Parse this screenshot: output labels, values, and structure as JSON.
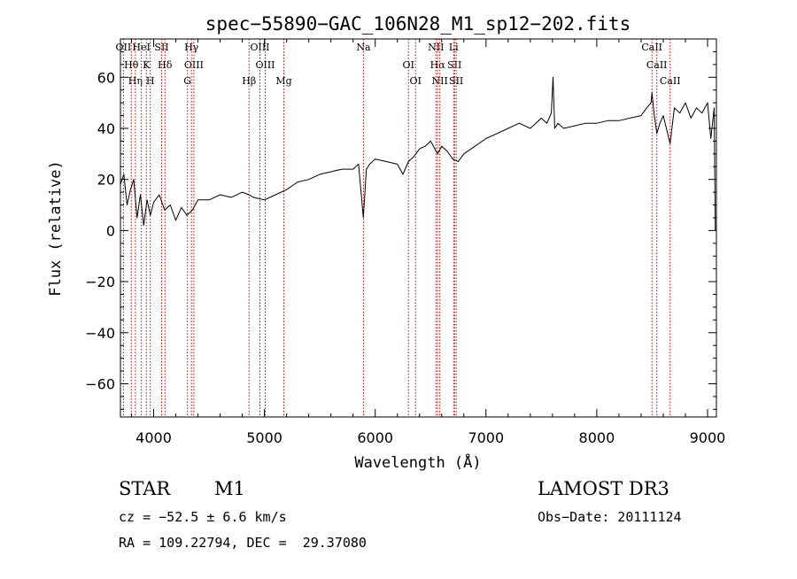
{
  "chart_data": {
    "type": "line",
    "title": "spec−55890−GAC_106N28_M1_sp12−202.fits",
    "xlabel": "Wavelength (Å)",
    "ylabel": "Flux (relative)",
    "xlim": [
      3700,
      9080
    ],
    "ylim": [
      -73,
      75
    ],
    "xticks": [
      4000,
      5000,
      6000,
      7000,
      8000,
      9000
    ],
    "xtick_labels": [
      "4000",
      "5000",
      "6000",
      "7000",
      "8000",
      "9000"
    ],
    "yticks": [
      -60,
      -40,
      -20,
      0,
      20,
      40,
      60
    ],
    "ytick_labels": [
      "−60",
      "−40",
      "−20",
      "0",
      "20",
      "40",
      "60"
    ],
    "series": [
      {
        "name": "spectrum",
        "x": [
          3700,
          3730,
          3760,
          3790,
          3820,
          3850,
          3880,
          3910,
          3940,
          3970,
          4000,
          4050,
          4100,
          4150,
          4200,
          4250,
          4300,
          4350,
          4400,
          4500,
          4600,
          4700,
          4800,
          4861,
          4900,
          5000,
          5100,
          5200,
          5300,
          5400,
          5500,
          5600,
          5700,
          5800,
          5850,
          5893,
          5920,
          5950,
          6000,
          6100,
          6200,
          6250,
          6300,
          6350,
          6400,
          6450,
          6500,
          6563,
          6600,
          6650,
          6700,
          6750,
          6800,
          6900,
          7000,
          7100,
          7200,
          7300,
          7400,
          7500,
          7550,
          7590,
          7605,
          7620,
          7650,
          7700,
          7800,
          7900,
          8000,
          8100,
          8200,
          8300,
          8400,
          8450,
          8490,
          8498,
          8520,
          8542,
          8570,
          8600,
          8662,
          8700,
          8750,
          8800,
          8850,
          8900,
          8950,
          9000,
          9030,
          9050,
          9060,
          9070
        ],
        "y": [
          18,
          22,
          10,
          16,
          20,
          5,
          14,
          2,
          12,
          6,
          11,
          14,
          8,
          10,
          4,
          9,
          6,
          8,
          12,
          12,
          14,
          13,
          15,
          14,
          13,
          12,
          14,
          16,
          19,
          20,
          22,
          23,
          24,
          24,
          26,
          5,
          24,
          26,
          28,
          27,
          26,
          22,
          27,
          29,
          32,
          33,
          35,
          30,
          33,
          31,
          28,
          27,
          30,
          33,
          36,
          38,
          40,
          42,
          40,
          44,
          42,
          46,
          60,
          40,
          42,
          40,
          41,
          42,
          42,
          43,
          43,
          44,
          45,
          48,
          50,
          54,
          45,
          38,
          42,
          45,
          34,
          48,
          46,
          50,
          44,
          48,
          46,
          50,
          36,
          44,
          48,
          0
        ]
      }
    ],
    "lines": [
      {
        "name": "OII",
        "wavelength": 3727
      },
      {
        "name": "Hθ",
        "wavelength": 3798
      },
      {
        "name": "Hη",
        "wavelength": 3835
      },
      {
        "name": "HeI",
        "wavelength": 3889
      },
      {
        "name": "K",
        "wavelength": 3934
      },
      {
        "name": "H",
        "wavelength": 3969
      },
      {
        "name": "SII",
        "wavelength": 4072
      },
      {
        "name": "Hδ",
        "wavelength": 4102
      },
      {
        "name": "G",
        "wavelength": 4305
      },
      {
        "name": "Hγ",
        "wavelength": 4341
      },
      {
        "name": "OIII",
        "wavelength": 4363
      },
      {
        "name": "Hβ",
        "wavelength": 4861
      },
      {
        "name": "OIII",
        "wavelength": 4959
      },
      {
        "name": "OIII",
        "wavelength": 5007
      },
      {
        "name": "Mg",
        "wavelength": 5175
      },
      {
        "name": "Na",
        "wavelength": 5894
      },
      {
        "name": "OI",
        "wavelength": 6300
      },
      {
        "name": "OI",
        "wavelength": 6364
      },
      {
        "name": "NII",
        "wavelength": 6548
      },
      {
        "name": "Hα",
        "wavelength": 6563
      },
      {
        "name": "NII",
        "wavelength": 6583
      },
      {
        "name": "Li",
        "wavelength": 6708
      },
      {
        "name": "SII",
        "wavelength": 6716
      },
      {
        "name": "SII",
        "wavelength": 6731
      },
      {
        "name": "CaII",
        "wavelength": 8498
      },
      {
        "name": "CaII",
        "wavelength": 8542
      },
      {
        "name": "CaII",
        "wavelength": 8662
      }
    ],
    "grid": false,
    "line_color": "#000000",
    "marker_color": "#cc0000"
  },
  "footer": {
    "object_class": "STAR",
    "subclass": "M1",
    "redshift": "cz = −52.5 ± 6.6 km/s",
    "coords": "RA = 109.22794, DEC =  29.37080",
    "survey": "LAMOST DR3",
    "obs_date": "Obs−Date: 20111124"
  }
}
